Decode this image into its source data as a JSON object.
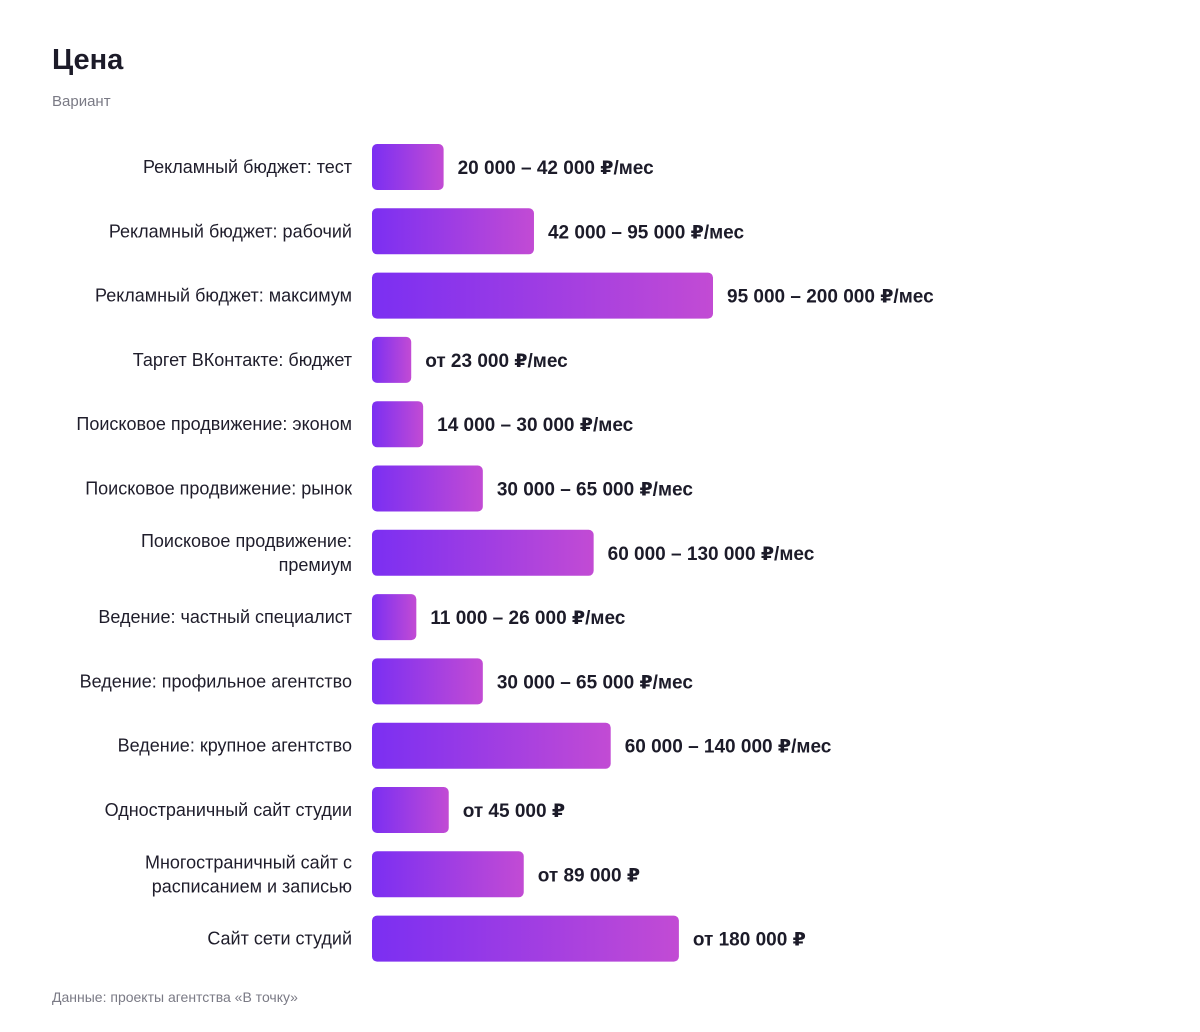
{
  "header": {
    "title": "Цена",
    "subtitle": "Вариант"
  },
  "footer": {
    "source": "Данные: проекты агентства «В точку»"
  },
  "colors": {
    "bar_start": "#7b2ff2",
    "bar_end": "#c24bd4"
  },
  "chart_data": {
    "type": "bar",
    "orientation": "horizontal",
    "title": "Цена",
    "subtitle": "Вариант",
    "categories": [
      [
        "Рекламный бюджет: тест"
      ],
      [
        "Рекламный бюджет: рабочий"
      ],
      [
        "Рекламный бюджет: максимум"
      ],
      [
        "Таргет ВКонтакте: бюджет"
      ],
      [
        "Поисковое продвижение: эконом"
      ],
      [
        "Поисковое продвижение: рынок"
      ],
      [
        "Поисковое продвижение:",
        "премиум"
      ],
      [
        "Ведение: частный специалист"
      ],
      [
        "Ведение: профильное агентство"
      ],
      [
        "Ведение: крупное агентство"
      ],
      [
        "Одностраничный сайт студии"
      ],
      [
        "Многостраничный сайт с",
        "расписанием и записью"
      ],
      [
        "Сайт сети студий"
      ]
    ],
    "values": [
      42000,
      95000,
      200000,
      23000,
      30000,
      65000,
      130000,
      26000,
      65000,
      140000,
      45000,
      89000,
      180000
    ],
    "value_labels": [
      "20 000 – 42 000 ₽/мес",
      "42 000 – 95 000 ₽/мес",
      "95 000 – 200 000 ₽/мес",
      "от 23 000 ₽/мес",
      "14 000 – 30 000 ₽/мес",
      "30 000 – 65 000 ₽/мес",
      "60 000 – 130 000 ₽/мес",
      "11 000 – 26 000 ₽/мес",
      "30 000 – 65 000 ₽/мес",
      "60 000 – 140 000 ₽/мес",
      "от 45 000 ₽",
      "от 89 000 ₽",
      "от 180 000 ₽"
    ],
    "xlim": [
      0,
      200000
    ],
    "grid": false,
    "legend": "none"
  }
}
